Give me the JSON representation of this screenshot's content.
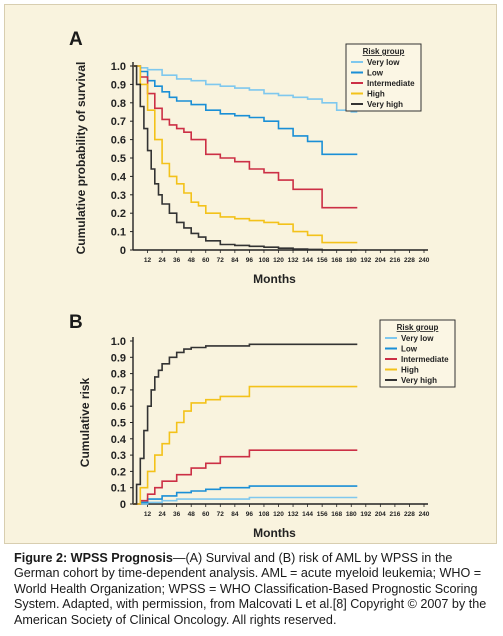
{
  "caption": {
    "bold_prefix": "Figure 2: WPSS Prognosis",
    "text": "—(A) Survival and (B) risk of AML by WPSS in the German cohort by time-dependent analysis. AML = acute myeloid leukemia; WHO = World Health Organization; WPSS = WHO Classification-Based Prognostic Scoring System. Adapted, with permission, from Malcovati L et al.[8] Copyright © 2007 by the American Society of Clinical Oncology. All rights reserved."
  },
  "colors": {
    "very_low": "#7fc8ee",
    "low": "#1a8fd6",
    "intermediate": "#cc2f45",
    "high": "#f3c21a",
    "very_high": "#333333",
    "panel_bg": "#f9f3de"
  },
  "chart_data": [
    {
      "panel": "A",
      "type": "line",
      "step": true,
      "ylabel": "Cumulative probability of survival",
      "xlabel": "Months",
      "xlim": [
        0,
        240
      ],
      "ylim": [
        0,
        1.0
      ],
      "x_ticks": [
        12,
        24,
        36,
        48,
        60,
        72,
        84,
        96,
        108,
        120,
        132,
        144,
        156,
        168,
        180,
        192,
        204,
        216,
        228,
        240
      ],
      "y_ticks": [
        {
          "value": 0,
          "label": "0"
        },
        {
          "value": 0.1,
          "label": "0.1"
        },
        {
          "value": 0.2,
          "label": "0.2"
        },
        {
          "value": 0.3,
          "label": "0.3"
        },
        {
          "value": 0.4,
          "label": "0.4"
        },
        {
          "value": 0.5,
          "label": "0.5"
        },
        {
          "value": 0.6,
          "label": "0.6"
        },
        {
          "value": 0.7,
          "label": "0.7"
        },
        {
          "value": 0.8,
          "label": "0.8"
        },
        {
          "value": 0.9,
          "label": "0.9"
        },
        {
          "value": 1.0,
          "label": "1.0"
        }
      ],
      "legend": {
        "title": "Risk group",
        "position": "top-right"
      },
      "series": [
        {
          "name": "Very low",
          "color_key": "very_low",
          "x": [
            0,
            6,
            12,
            24,
            36,
            48,
            60,
            72,
            84,
            96,
            108,
            120,
            132,
            144,
            156,
            168,
            180,
            185
          ],
          "y": [
            1.0,
            0.99,
            0.98,
            0.95,
            0.93,
            0.92,
            0.9,
            0.89,
            0.88,
            0.87,
            0.85,
            0.84,
            0.83,
            0.82,
            0.8,
            0.76,
            0.75,
            0.75
          ]
        },
        {
          "name": "Low",
          "color_key": "low",
          "x": [
            0,
            6,
            12,
            18,
            24,
            30,
            36,
            48,
            60,
            72,
            84,
            96,
            108,
            120,
            132,
            144,
            156,
            168,
            185
          ],
          "y": [
            1.0,
            0.97,
            0.92,
            0.89,
            0.86,
            0.83,
            0.81,
            0.79,
            0.76,
            0.74,
            0.73,
            0.72,
            0.7,
            0.66,
            0.62,
            0.59,
            0.52,
            0.52,
            0.52
          ]
        },
        {
          "name": "Intermediate",
          "color_key": "intermediate",
          "x": [
            0,
            6,
            12,
            18,
            24,
            30,
            36,
            42,
            48,
            60,
            72,
            84,
            96,
            108,
            120,
            132,
            156,
            185
          ],
          "y": [
            1.0,
            0.94,
            0.85,
            0.77,
            0.71,
            0.68,
            0.66,
            0.64,
            0.6,
            0.52,
            0.5,
            0.48,
            0.44,
            0.42,
            0.38,
            0.33,
            0.23,
            0.23
          ]
        },
        {
          "name": "High",
          "color_key": "high",
          "x": [
            0,
            6,
            12,
            18,
            24,
            30,
            36,
            42,
            48,
            54,
            60,
            72,
            84,
            96,
            108,
            120,
            132,
            144,
            156,
            185
          ],
          "y": [
            1.0,
            0.9,
            0.76,
            0.6,
            0.47,
            0.4,
            0.36,
            0.31,
            0.26,
            0.24,
            0.2,
            0.18,
            0.17,
            0.16,
            0.15,
            0.14,
            0.1,
            0.08,
            0.04,
            0.04
          ]
        },
        {
          "name": "Very high",
          "color_key": "very_high",
          "x": [
            0,
            3,
            6,
            9,
            12,
            15,
            18,
            21,
            24,
            30,
            36,
            42,
            48,
            54,
            60,
            72,
            84,
            96,
            108,
            120,
            132,
            144,
            156,
            185
          ],
          "y": [
            1.0,
            0.9,
            0.78,
            0.66,
            0.54,
            0.44,
            0.36,
            0.3,
            0.25,
            0.2,
            0.15,
            0.12,
            0.09,
            0.07,
            0.05,
            0.03,
            0.025,
            0.02,
            0.015,
            0.01,
            0.005,
            0.003,
            0.0,
            0.0
          ]
        }
      ]
    },
    {
      "panel": "B",
      "type": "line",
      "step": true,
      "ylabel": "Cumulative risk",
      "xlabel": "Months",
      "xlim": [
        0,
        240
      ],
      "ylim": [
        0,
        1.0
      ],
      "x_ticks": [
        12,
        24,
        36,
        48,
        60,
        72,
        84,
        96,
        108,
        120,
        132,
        144,
        156,
        168,
        180,
        192,
        204,
        216,
        228,
        240
      ],
      "y_ticks": [
        {
          "value": 0,
          "label": "0"
        },
        {
          "value": 0.1,
          "label": "0.1"
        },
        {
          "value": 0.2,
          "label": "0.2"
        },
        {
          "value": 0.3,
          "label": "0.3"
        },
        {
          "value": 0.4,
          "label": "0.4"
        },
        {
          "value": 0.5,
          "label": "0.5"
        },
        {
          "value": 0.6,
          "label": "0.6"
        },
        {
          "value": 0.7,
          "label": "0.7"
        },
        {
          "value": 0.8,
          "label": "0.8"
        },
        {
          "value": 0.9,
          "label": "0.9"
        },
        {
          "value": 1.0,
          "label": "1.0"
        }
      ],
      "legend": {
        "title": "Risk group",
        "position": "top-right"
      },
      "series": [
        {
          "name": "Very low",
          "color_key": "very_low",
          "x": [
            0,
            12,
            24,
            36,
            48,
            60,
            96,
            185
          ],
          "y": [
            0.0,
            0.01,
            0.02,
            0.03,
            0.03,
            0.03,
            0.04,
            0.04
          ]
        },
        {
          "name": "Low",
          "color_key": "low",
          "x": [
            0,
            6,
            12,
            24,
            36,
            48,
            60,
            72,
            96,
            185
          ],
          "y": [
            0.0,
            0.01,
            0.03,
            0.05,
            0.07,
            0.08,
            0.09,
            0.1,
            0.11,
            0.11
          ]
        },
        {
          "name": "Intermediate",
          "color_key": "intermediate",
          "x": [
            0,
            6,
            12,
            18,
            24,
            36,
            48,
            60,
            72,
            96,
            185
          ],
          "y": [
            0.0,
            0.02,
            0.06,
            0.1,
            0.14,
            0.18,
            0.22,
            0.25,
            0.29,
            0.33,
            0.33
          ]
        },
        {
          "name": "High",
          "color_key": "high",
          "x": [
            0,
            6,
            12,
            18,
            24,
            30,
            36,
            42,
            48,
            60,
            72,
            96,
            185
          ],
          "y": [
            0.0,
            0.1,
            0.2,
            0.3,
            0.37,
            0.44,
            0.5,
            0.57,
            0.62,
            0.64,
            0.66,
            0.72,
            0.72
          ]
        },
        {
          "name": "Very high",
          "color_key": "very_high",
          "x": [
            0,
            3,
            6,
            9,
            12,
            15,
            18,
            21,
            24,
            30,
            36,
            42,
            48,
            60,
            96,
            185
          ],
          "y": [
            0.0,
            0.12,
            0.28,
            0.45,
            0.6,
            0.7,
            0.78,
            0.82,
            0.86,
            0.9,
            0.93,
            0.95,
            0.96,
            0.97,
            0.98,
            0.98
          ]
        }
      ]
    }
  ]
}
